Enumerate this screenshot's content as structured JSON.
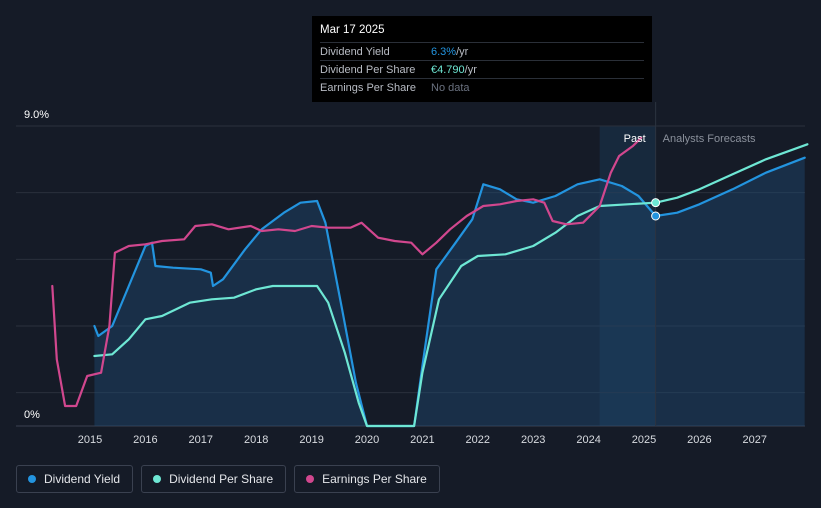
{
  "tooltip": {
    "date": "Mar 17 2025",
    "rows": [
      {
        "label": "Dividend Yield",
        "value": "6.3%",
        "unit": " /yr"
      },
      {
        "label": "Dividend Per Share",
        "value": "€4.790",
        "unit": " /yr"
      },
      {
        "label": "Earnings Per Share",
        "value": "No data",
        "unit": ""
      }
    ]
  },
  "legend": [
    {
      "label": "Dividend Yield",
      "color": "#2394df"
    },
    {
      "label": "Dividend Per Share",
      "color": "#6ee7d4"
    },
    {
      "label": "Earnings Per Share",
      "color": "#d1478e"
    }
  ],
  "chart_data": {
    "type": "line",
    "xlabel": "",
    "ylabel": "",
    "ylim": [
      0,
      9.0
    ],
    "xlim": [
      2014.0,
      2028.0
    ],
    "y_ticks": [
      "0%",
      "9.0%"
    ],
    "x_ticks": [
      "2015",
      "2016",
      "2017",
      "2018",
      "2019",
      "2020",
      "2021",
      "2022",
      "2023",
      "2024",
      "2025",
      "2026",
      "2027"
    ],
    "past_label": "Past",
    "forecast_label": "Analysts Forecasts",
    "forecast_start": 2025.21,
    "forecast_band_start": 2024.2,
    "grid": true,
    "series": [
      {
        "name": "Dividend Yield",
        "color": "#2394df",
        "points": [
          [
            2015.08,
            3.0
          ],
          [
            2015.15,
            2.7
          ],
          [
            2015.4,
            3.0
          ],
          [
            2015.7,
            4.2
          ],
          [
            2016.0,
            5.4
          ],
          [
            2016.12,
            5.5
          ],
          [
            2016.18,
            4.8
          ],
          [
            2016.5,
            4.75
          ],
          [
            2017.0,
            4.7
          ],
          [
            2017.18,
            4.6
          ],
          [
            2017.22,
            4.2
          ],
          [
            2017.4,
            4.4
          ],
          [
            2017.8,
            5.3
          ],
          [
            2018.1,
            5.9
          ],
          [
            2018.5,
            6.4
          ],
          [
            2018.8,
            6.7
          ],
          [
            2019.1,
            6.75
          ],
          [
            2019.25,
            6.1
          ],
          [
            2019.55,
            3.5
          ],
          [
            2019.8,
            1.3
          ],
          [
            2020.0,
            0.0
          ],
          [
            2020.85,
            0.0
          ],
          [
            2021.0,
            1.8
          ],
          [
            2021.25,
            4.7
          ],
          [
            2021.6,
            5.5
          ],
          [
            2021.9,
            6.2
          ],
          [
            2022.1,
            7.25
          ],
          [
            2022.4,
            7.1
          ],
          [
            2022.7,
            6.8
          ],
          [
            2023.0,
            6.7
          ],
          [
            2023.4,
            6.9
          ],
          [
            2023.8,
            7.25
          ],
          [
            2024.2,
            7.4
          ],
          [
            2024.6,
            7.2
          ],
          [
            2024.9,
            6.9
          ],
          [
            2025.21,
            6.3
          ],
          [
            2025.6,
            6.4
          ],
          [
            2026.0,
            6.65
          ],
          [
            2026.6,
            7.1
          ],
          [
            2027.2,
            7.6
          ],
          [
            2027.9,
            8.05
          ]
        ]
      },
      {
        "name": "Dividend Per Share",
        "color": "#6ee7d4",
        "points": [
          [
            2015.08,
            2.1
          ],
          [
            2015.4,
            2.15
          ],
          [
            2015.7,
            2.6
          ],
          [
            2016.0,
            3.2
          ],
          [
            2016.3,
            3.3
          ],
          [
            2016.8,
            3.7
          ],
          [
            2017.2,
            3.8
          ],
          [
            2017.6,
            3.85
          ],
          [
            2018.0,
            4.1
          ],
          [
            2018.3,
            4.2
          ],
          [
            2019.1,
            4.2
          ],
          [
            2019.3,
            3.7
          ],
          [
            2019.6,
            2.2
          ],
          [
            2019.85,
            0.7
          ],
          [
            2020.0,
            0.0
          ],
          [
            2020.85,
            0.0
          ],
          [
            2021.0,
            1.6
          ],
          [
            2021.3,
            3.8
          ],
          [
            2021.7,
            4.8
          ],
          [
            2022.0,
            5.1
          ],
          [
            2022.5,
            5.15
          ],
          [
            2023.0,
            5.4
          ],
          [
            2023.4,
            5.8
          ],
          [
            2023.8,
            6.3
          ],
          [
            2024.2,
            6.6
          ],
          [
            2024.7,
            6.65
          ],
          [
            2025.21,
            6.7
          ],
          [
            2025.6,
            6.85
          ],
          [
            2026.0,
            7.1
          ],
          [
            2026.6,
            7.55
          ],
          [
            2027.2,
            8.0
          ],
          [
            2027.95,
            8.45
          ]
        ]
      },
      {
        "name": "Earnings Per Share",
        "color": "#d1478e",
        "points": [
          [
            2014.32,
            4.2
          ],
          [
            2014.4,
            2.0
          ],
          [
            2014.55,
            0.6
          ],
          [
            2014.75,
            0.6
          ],
          [
            2014.95,
            1.5
          ],
          [
            2015.2,
            1.6
          ],
          [
            2015.35,
            3.0
          ],
          [
            2015.45,
            5.2
          ],
          [
            2015.7,
            5.4
          ],
          [
            2016.0,
            5.45
          ],
          [
            2016.3,
            5.55
          ],
          [
            2016.7,
            5.6
          ],
          [
            2016.9,
            6.0
          ],
          [
            2017.2,
            6.05
          ],
          [
            2017.5,
            5.9
          ],
          [
            2017.9,
            6.0
          ],
          [
            2018.1,
            5.85
          ],
          [
            2018.4,
            5.9
          ],
          [
            2018.7,
            5.85
          ],
          [
            2019.0,
            6.0
          ],
          [
            2019.3,
            5.95
          ],
          [
            2019.7,
            5.95
          ],
          [
            2019.9,
            6.1
          ],
          [
            2020.2,
            5.65
          ],
          [
            2020.5,
            5.55
          ],
          [
            2020.8,
            5.5
          ],
          [
            2021.0,
            5.15
          ],
          [
            2021.25,
            5.5
          ],
          [
            2021.5,
            5.9
          ],
          [
            2021.8,
            6.3
          ],
          [
            2022.1,
            6.6
          ],
          [
            2022.4,
            6.65
          ],
          [
            2022.7,
            6.75
          ],
          [
            2023.0,
            6.8
          ],
          [
            2023.2,
            6.7
          ],
          [
            2023.35,
            6.15
          ],
          [
            2023.6,
            6.05
          ],
          [
            2023.9,
            6.1
          ],
          [
            2024.2,
            6.6
          ],
          [
            2024.4,
            7.6
          ],
          [
            2024.55,
            8.1
          ],
          [
            2024.8,
            8.4
          ],
          [
            2024.95,
            8.65
          ]
        ]
      }
    ],
    "highlight_x": 2025.21
  }
}
